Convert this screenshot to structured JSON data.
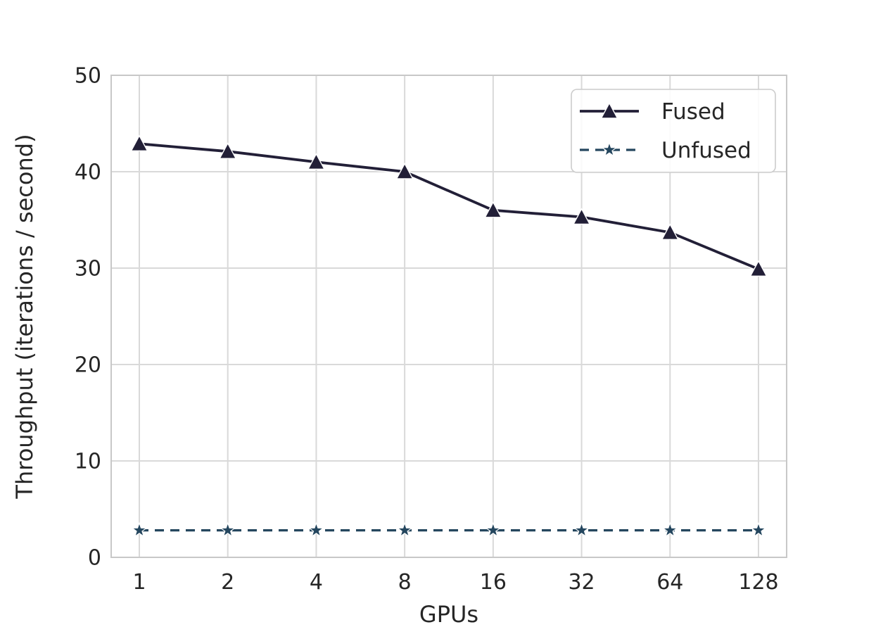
{
  "chart_data": {
    "type": "line",
    "title": "",
    "xlabel": "GPUs",
    "ylabel": "Throughput (iterations / second)",
    "categories": [
      "1",
      "2",
      "4",
      "8",
      "16",
      "32",
      "64",
      "128"
    ],
    "series": [
      {
        "name": "Fused",
        "values": [
          42.9,
          42.1,
          41.0,
          40.0,
          36.0,
          35.3,
          33.7,
          29.9
        ],
        "color": "#221f37",
        "line_style": "solid",
        "marker": "triangle"
      },
      {
        "name": "Unfused",
        "values": [
          2.8,
          2.8,
          2.8,
          2.8,
          2.8,
          2.8,
          2.8,
          2.8
        ],
        "color": "#24465e",
        "line_style": "dashed",
        "marker": "star"
      }
    ],
    "ylim": [
      0,
      50
    ],
    "yticks": [
      0,
      10,
      20,
      30,
      40,
      50
    ],
    "grid": true,
    "legend_position": "upper right",
    "colors": {
      "grid": "#d9d9d9",
      "axis_border": "#c8c8c8",
      "text": "#262626",
      "background": "#ffffff",
      "legend_border": "#cccccc"
    }
  }
}
